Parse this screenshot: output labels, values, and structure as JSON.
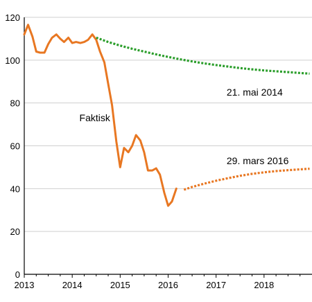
{
  "chart_data": {
    "type": "line",
    "title": "",
    "xlabel": "",
    "ylabel": "",
    "xlim": [
      2013,
      2019
    ],
    "ylim": [
      0,
      120
    ],
    "grid": true,
    "x_ticks": [
      2013,
      2014,
      2015,
      2016,
      2017,
      2018
    ],
    "y_ticks": [
      0,
      20,
      40,
      60,
      80,
      100,
      120
    ],
    "annotations": [
      {
        "text": "Faktisk",
        "x": 2014.15,
        "y": 71.5
      },
      {
        "text": "21. mai 2014",
        "x": 2017.22,
        "y": 83.5
      },
      {
        "text": "29. mars 2016",
        "x": 2017.22,
        "y": 51.5
      }
    ],
    "series": [
      {
        "style": "solid",
        "color": "#e87722",
        "points": [
          [
            2013.0,
            112
          ],
          [
            2013.08,
            116.5
          ],
          [
            2013.17,
            111
          ],
          [
            2013.25,
            104
          ],
          [
            2013.33,
            103.5
          ],
          [
            2013.42,
            103.5
          ],
          [
            2013.5,
            107.5
          ],
          [
            2013.58,
            110.5
          ],
          [
            2013.67,
            112
          ],
          [
            2013.75,
            110
          ],
          [
            2013.83,
            108.5
          ],
          [
            2013.92,
            110.5
          ],
          [
            2014.0,
            108
          ],
          [
            2014.08,
            108.5
          ],
          [
            2014.17,
            108
          ],
          [
            2014.25,
            108.5
          ],
          [
            2014.33,
            109.5
          ],
          [
            2014.42,
            112
          ],
          [
            2014.5,
            109.5
          ],
          [
            2014.58,
            104
          ],
          [
            2014.67,
            99
          ],
          [
            2014.75,
            89
          ],
          [
            2014.83,
            79
          ],
          [
            2014.92,
            62
          ],
          [
            2015.0,
            50
          ],
          [
            2015.08,
            59
          ],
          [
            2015.17,
            57
          ],
          [
            2015.25,
            60
          ],
          [
            2015.33,
            65
          ],
          [
            2015.42,
            62.5
          ],
          [
            2015.5,
            57
          ],
          [
            2015.58,
            48.5
          ],
          [
            2015.67,
            48.5
          ],
          [
            2015.75,
            49.5
          ],
          [
            2015.83,
            46.5
          ],
          [
            2015.92,
            38
          ],
          [
            2016.0,
            32
          ],
          [
            2016.08,
            34
          ],
          [
            2016.17,
            40
          ]
        ]
      },
      {
        "style": "dotted",
        "color": "#2b9e2b",
        "points": [
          [
            2014.5,
            110.5
          ],
          [
            2014.75,
            108.5
          ],
          [
            2015.0,
            106.8
          ],
          [
            2015.25,
            105.3
          ],
          [
            2015.5,
            104
          ],
          [
            2015.75,
            102.7
          ],
          [
            2016.0,
            101.5
          ],
          [
            2016.25,
            100.4
          ],
          [
            2016.5,
            99.4
          ],
          [
            2016.75,
            98.5
          ],
          [
            2017.0,
            97.7
          ],
          [
            2017.25,
            97
          ],
          [
            2017.5,
            96.3
          ],
          [
            2017.75,
            95.7
          ],
          [
            2018.0,
            95.2
          ],
          [
            2018.25,
            94.8
          ],
          [
            2018.5,
            94.4
          ],
          [
            2018.75,
            94
          ],
          [
            2018.95,
            93.7
          ]
        ]
      },
      {
        "style": "dotted",
        "color": "#e87722",
        "points": [
          [
            2016.33,
            39.5
          ],
          [
            2016.5,
            40.8
          ],
          [
            2016.75,
            42.3
          ],
          [
            2017.0,
            43.7
          ],
          [
            2017.25,
            44.9
          ],
          [
            2017.5,
            46
          ],
          [
            2017.75,
            46.9
          ],
          [
            2018.0,
            47.6
          ],
          [
            2018.25,
            48.2
          ],
          [
            2018.5,
            48.6
          ],
          [
            2018.75,
            49
          ],
          [
            2018.95,
            49.3
          ]
        ]
      }
    ]
  }
}
